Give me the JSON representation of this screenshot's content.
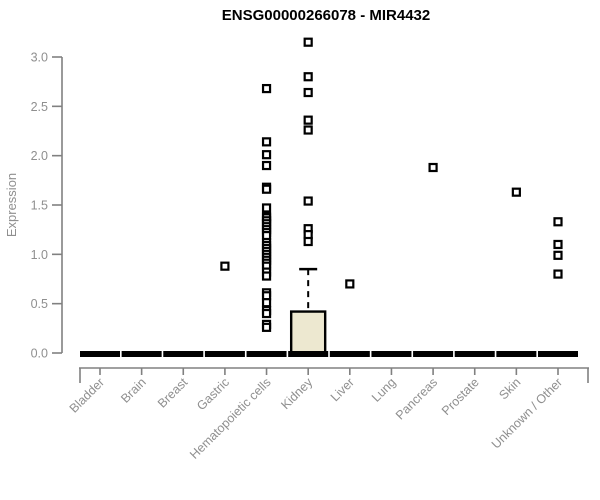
{
  "chart_data": {
    "type": "boxplot",
    "title": "ENSG00000266078 - MIR4432",
    "ylabel": "Expression",
    "xlabel": "",
    "ylim": [
      0,
      3.2
    ],
    "yticks": [
      "0.0",
      "0.5",
      "1.0",
      "1.5",
      "2.0",
      "2.5",
      "3.0"
    ],
    "grid": false,
    "legend": "none",
    "colors": {
      "box_fill": "#EDE8D0",
      "box_stroke": "#000000",
      "flat_bar": "#000000",
      "axis": "#808080",
      "tick_text": "#8f8f8f",
      "title_text": "#000000",
      "outlier_stroke": "#000000",
      "outlier_fill": "#ffffff"
    },
    "categories": [
      "Bladder",
      "Brain",
      "Breast",
      "Gastric",
      "Hematopoietic cells",
      "Kidney",
      "Liver",
      "Lung",
      "Pancreas",
      "Prostate",
      "Skin",
      "Unknown / Other"
    ],
    "series": [
      {
        "name": "Bladder",
        "q1": 0,
        "median": 0,
        "q3": 0,
        "whisker_low": 0,
        "whisker_high": 0,
        "outliers": []
      },
      {
        "name": "Brain",
        "q1": 0,
        "median": 0,
        "q3": 0,
        "whisker_low": 0,
        "whisker_high": 0,
        "outliers": []
      },
      {
        "name": "Breast",
        "q1": 0,
        "median": 0,
        "q3": 0,
        "whisker_low": 0,
        "whisker_high": 0,
        "outliers": []
      },
      {
        "name": "Gastric",
        "q1": 0,
        "median": 0,
        "q3": 0,
        "whisker_low": 0,
        "whisker_high": 0,
        "outliers": [
          0.88
        ]
      },
      {
        "name": "Hematopoietic cells",
        "q1": 0,
        "median": 0,
        "q3": 0,
        "whisker_low": 0,
        "whisker_high": 0,
        "outliers": [
          2.68,
          2.14,
          2.01,
          1.9,
          1.68,
          1.66,
          1.47,
          1.38,
          1.37,
          1.34,
          1.31,
          1.28,
          1.25,
          1.22,
          1.19,
          1.12,
          1.09,
          1.06,
          1.03,
          1.0,
          0.97,
          0.94,
          0.91,
          0.88,
          0.82,
          0.78,
          0.61,
          0.58,
          0.51,
          0.43,
          0.4,
          0.29,
          0.26
        ]
      },
      {
        "name": "Kidney",
        "q1": 0,
        "median": 0,
        "q3": 0.42,
        "whisker_low": 0,
        "whisker_high": 0.85,
        "outliers": [
          3.15,
          2.8,
          2.64,
          2.36,
          2.26,
          1.54,
          1.26,
          1.2,
          1.13
        ]
      },
      {
        "name": "Liver",
        "q1": 0,
        "median": 0,
        "q3": 0,
        "whisker_low": 0,
        "whisker_high": 0,
        "outliers": [
          0.7
        ]
      },
      {
        "name": "Lung",
        "q1": 0,
        "median": 0,
        "q3": 0,
        "whisker_low": 0,
        "whisker_high": 0,
        "outliers": []
      },
      {
        "name": "Pancreas",
        "q1": 0,
        "median": 0,
        "q3": 0,
        "whisker_low": 0,
        "whisker_high": 0,
        "outliers": [
          1.88
        ]
      },
      {
        "name": "Prostate",
        "q1": 0,
        "median": 0,
        "q3": 0,
        "whisker_low": 0,
        "whisker_high": 0,
        "outliers": []
      },
      {
        "name": "Skin",
        "q1": 0,
        "median": 0,
        "q3": 0,
        "whisker_low": 0,
        "whisker_high": 0,
        "outliers": [
          1.63
        ]
      },
      {
        "name": "Unknown / Other",
        "q1": 0,
        "median": 0,
        "q3": 0,
        "whisker_low": 0,
        "whisker_high": 0,
        "outliers": [
          1.33,
          1.1,
          0.99,
          0.8
        ]
      }
    ]
  }
}
